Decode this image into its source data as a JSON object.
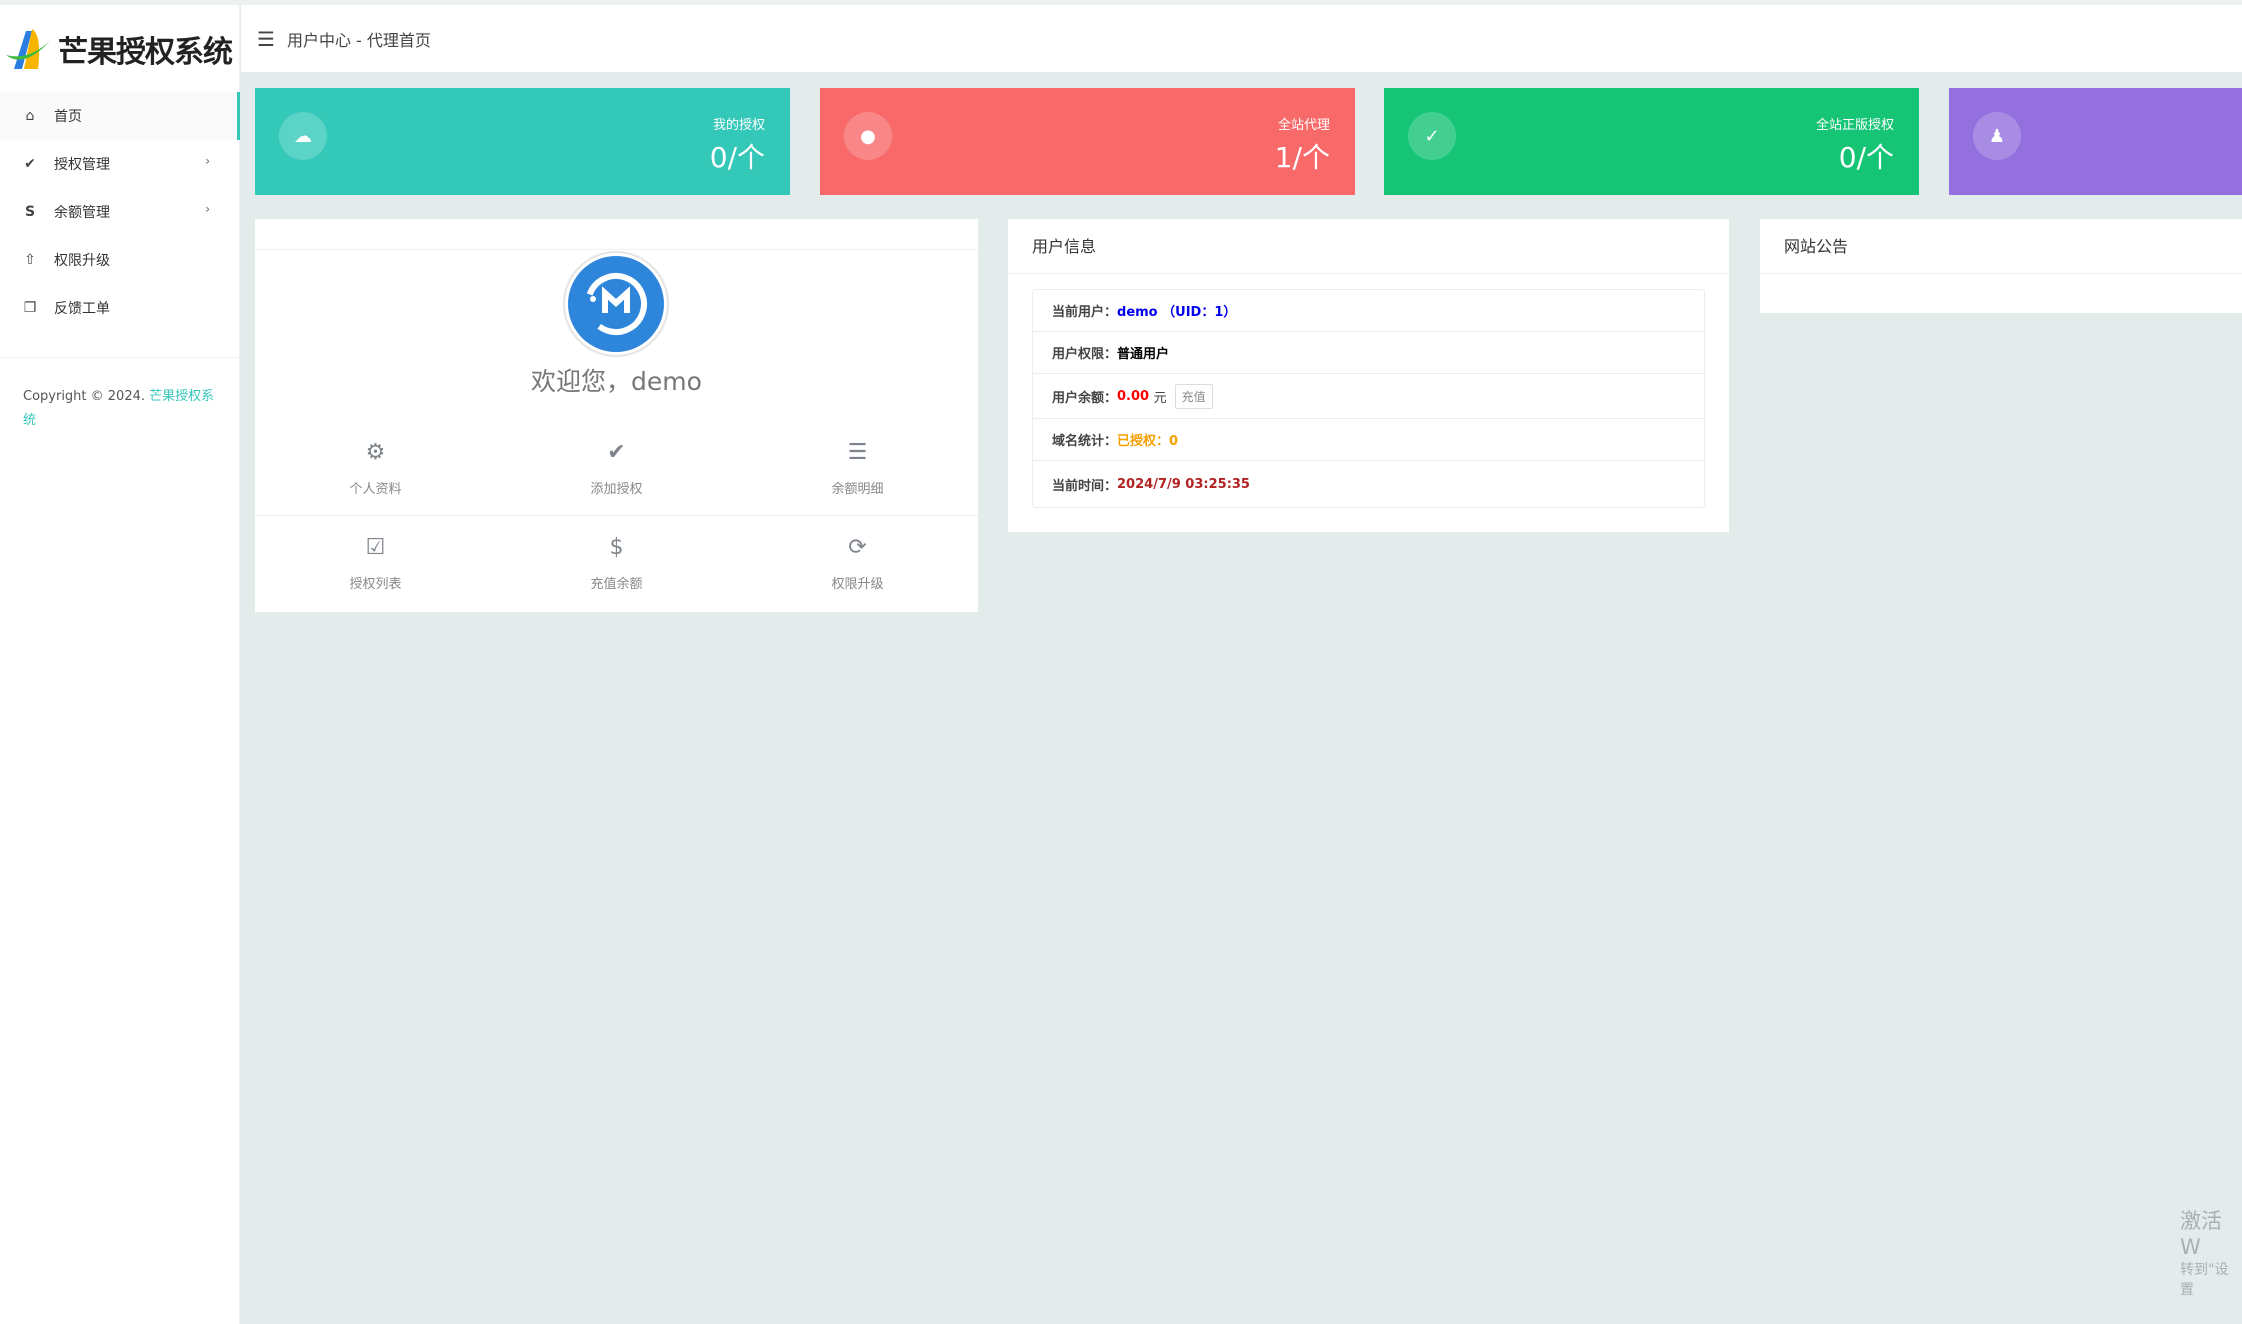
{
  "app": {
    "logo_text": "芒果授权系统",
    "breadcrumb": "用户中心 - 代理首页"
  },
  "sidebar": {
    "items": [
      {
        "label": "首页",
        "icon": "home-icon",
        "active": true
      },
      {
        "label": "授权管理",
        "icon": "badge-check-icon",
        "has_children": true
      },
      {
        "label": "余额管理",
        "icon": "skype-s-icon",
        "has_children": true
      },
      {
        "label": "权限升级",
        "icon": "arrow-up-icon"
      },
      {
        "label": "反馈工单",
        "icon": "comments-icon"
      }
    ],
    "copyright": "Copyright © 2024.",
    "copyright_link": "芒果授权系统",
    "chevron": "›"
  },
  "stats": [
    {
      "label": "我的授权",
      "value": "0/个",
      "color": "#34c8b9",
      "icon": "cloud-icon"
    },
    {
      "label": "全站代理",
      "value": "1/个",
      "color": "#f86a6a",
      "icon": "user-icon"
    },
    {
      "label": "全站正版授权",
      "value": "0/个",
      "color": "#16c475",
      "icon": "user-check-icon"
    },
    {
      "label": "",
      "value": "",
      "color": "#9370dd",
      "icon": "qq-penguin-icon"
    }
  ],
  "welcome": {
    "text": "欢迎您，demo"
  },
  "shortcuts": [
    {
      "label": "个人资料",
      "icon": "gear-icon"
    },
    {
      "label": "添加授权",
      "icon": "badge-check-icon"
    },
    {
      "label": "余额明细",
      "icon": "list-icon"
    },
    {
      "label": "授权列表",
      "icon": "checklist-icon"
    },
    {
      "label": "充值余额",
      "icon": "dollar-circle-icon"
    },
    {
      "label": "权限升级",
      "icon": "user-sync-icon"
    }
  ],
  "user_info": {
    "title": "用户信息",
    "rows": {
      "user_label": "当前用户：",
      "user_value": "demo （UID：1）",
      "perm_label": "用户权限：",
      "perm_value": "普通用户",
      "balance_label": "用户余额：",
      "balance_value": "0.00",
      "balance_unit": "元",
      "recharge": "充值",
      "domain_label": "域名统计：",
      "domain_value": "已授权：0",
      "time_label": "当前时间：",
      "time_value": "2024/7/9 03:25:35"
    }
  },
  "notice": {
    "title": "网站公告"
  },
  "watermark": {
    "line1": "激活 W",
    "line2": "转到\"设置"
  }
}
